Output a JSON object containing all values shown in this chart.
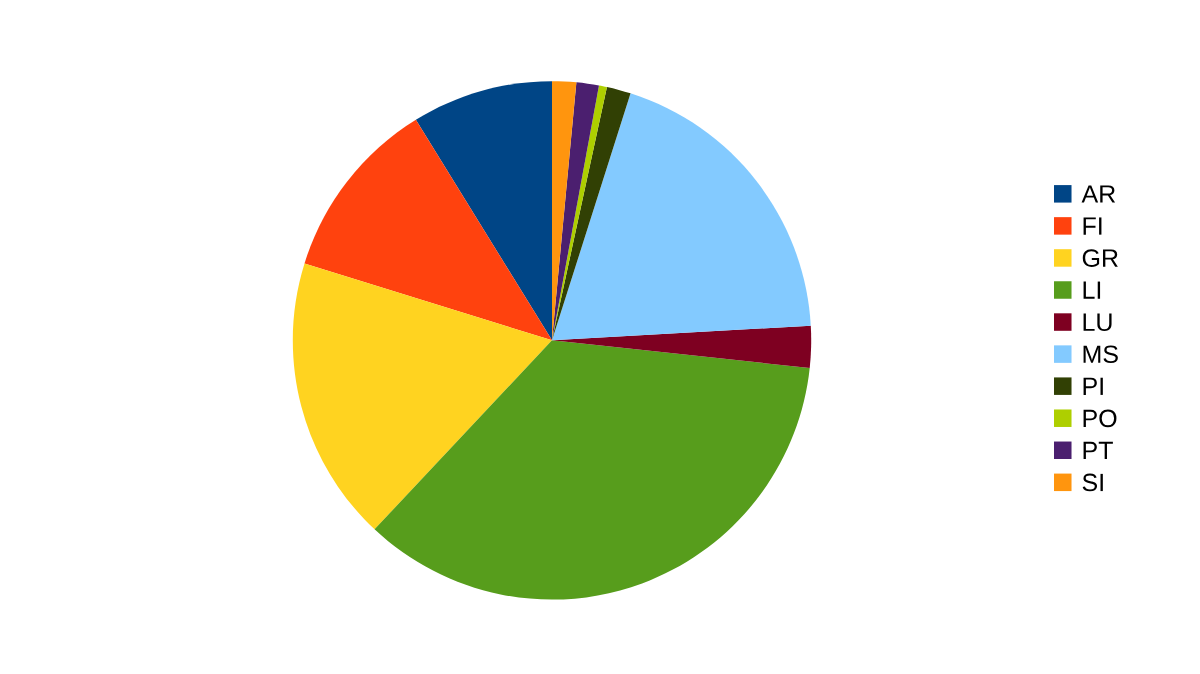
{
  "chart_data": {
    "type": "pie",
    "categories": [
      "AR",
      "FI",
      "GR",
      "LI",
      "LU",
      "MS",
      "PI",
      "PO",
      "PT",
      "SI"
    ],
    "values": [
      8.8,
      11.4,
      17.8,
      35.3,
      2.6,
      19.2,
      1.5,
      0.5,
      1.4,
      1.5
    ],
    "colors": [
      "#004586",
      "#ff420e",
      "#ffd320",
      "#579d1c",
      "#7e0021",
      "#83caff",
      "#314004",
      "#aecf00",
      "#4b1f6f",
      "#ff950e"
    ],
    "legend": "right"
  }
}
